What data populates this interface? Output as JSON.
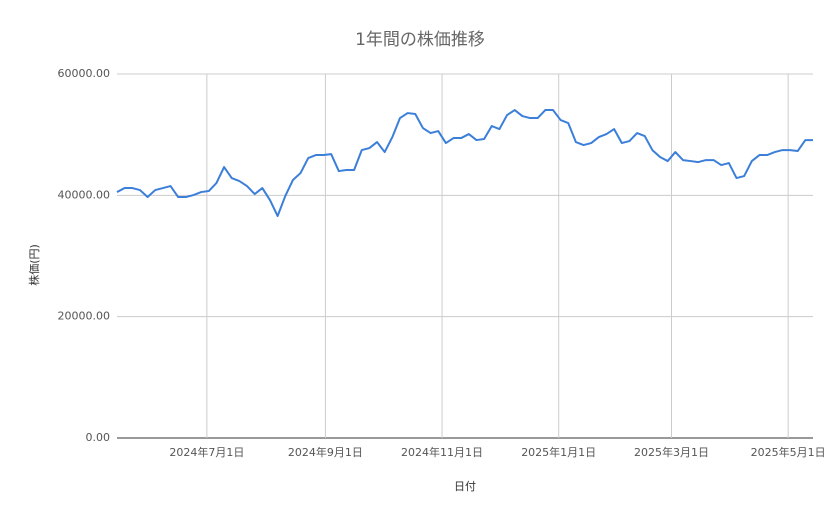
{
  "chart_data": {
    "type": "line",
    "title": "1年間の株価推移",
    "x_label": "日付",
    "y_label": "株価(円)",
    "x": [
      "2024-05-15",
      "2024-05-19",
      "2024-05-23",
      "2024-05-27",
      "2024-05-31",
      "2024-06-04",
      "2024-06-08",
      "2024-06-12",
      "2024-06-16",
      "2024-06-20",
      "2024-06-24",
      "2024-06-28",
      "2024-07-02",
      "2024-07-06",
      "2024-07-10",
      "2024-07-14",
      "2024-07-18",
      "2024-07-22",
      "2024-07-26",
      "2024-07-30",
      "2024-08-03",
      "2024-08-07",
      "2024-08-11",
      "2024-08-15",
      "2024-08-19",
      "2024-08-23",
      "2024-08-27",
      "2024-08-31",
      "2024-09-04",
      "2024-09-08",
      "2024-09-12",
      "2024-09-16",
      "2024-09-20",
      "2024-09-24",
      "2024-09-28",
      "2024-10-02",
      "2024-10-06",
      "2024-10-10",
      "2024-10-14",
      "2024-10-18",
      "2024-10-22",
      "2024-10-26",
      "2024-10-30",
      "2024-11-03",
      "2024-11-07",
      "2024-11-11",
      "2024-11-15",
      "2024-11-19",
      "2024-11-23",
      "2024-11-27",
      "2024-12-01",
      "2024-12-05",
      "2024-12-09",
      "2024-12-13",
      "2024-12-17",
      "2024-12-21",
      "2024-12-25",
      "2024-12-29",
      "2025-01-02",
      "2025-01-06",
      "2025-01-10",
      "2025-01-14",
      "2025-01-18",
      "2025-01-22",
      "2025-01-26",
      "2025-01-30",
      "2025-02-03",
      "2025-02-07",
      "2025-02-11",
      "2025-02-15",
      "2025-02-19",
      "2025-02-23",
      "2025-02-27",
      "2025-03-03",
      "2025-03-07",
      "2025-03-11",
      "2025-03-15",
      "2025-03-19",
      "2025-03-23",
      "2025-03-27",
      "2025-03-31",
      "2025-04-04",
      "2025-04-08",
      "2025-04-12",
      "2025-04-16",
      "2025-04-20",
      "2025-04-24",
      "2025-04-28",
      "2025-05-02",
      "2025-05-06",
      "2025-05-10",
      "2025-05-14"
    ],
    "series": [
      {
        "name": "株価",
        "color": "#3c7fd9",
        "values": [
          40540,
          41200,
          41200,
          40870,
          39720,
          40870,
          41200,
          41530,
          39720,
          39720,
          40050,
          40540,
          40710,
          42020,
          44660,
          42850,
          42350,
          41530,
          40210,
          41200,
          39220,
          36590,
          39880,
          42520,
          43670,
          46140,
          46640,
          46640,
          46800,
          44000,
          44170,
          44170,
          47460,
          47790,
          48780,
          47130,
          49600,
          52740,
          53560,
          53400,
          51090,
          50260,
          50590,
          48620,
          49440,
          49440,
          50100,
          49110,
          49280,
          51420,
          50920,
          53230,
          54060,
          53070,
          52740,
          52740,
          54060,
          54060,
          52410,
          51910,
          48780,
          48290,
          48620,
          49600,
          50100,
          50920,
          48620,
          48950,
          50260,
          49770,
          47460,
          46310,
          45650,
          47130,
          45810,
          45650,
          45480,
          45810,
          45810,
          44990,
          45320,
          42850,
          43180,
          45650,
          46640,
          46640,
          47130,
          47460,
          47460,
          47300,
          49110,
          49110
        ]
      }
    ],
    "xlim": [
      "2024-05-15",
      "2025-05-14"
    ],
    "xticks": [
      {
        "value": "2024-07-01",
        "label": "2024年7月1日"
      },
      {
        "value": "2024-09-01",
        "label": "2024年9月1日"
      },
      {
        "value": "2024-11-01",
        "label": "2024年11月1日"
      },
      {
        "value": "2025-01-01",
        "label": "2025年1月1日"
      },
      {
        "value": "2025-03-01",
        "label": "2025年3月1日"
      },
      {
        "value": "2025-05-01",
        "label": "2025年5月1日"
      }
    ],
    "ylim": [
      0,
      60000
    ],
    "yticks": [
      {
        "value": 0,
        "label": "0.00"
      },
      {
        "value": 20000,
        "label": "20000.00"
      },
      {
        "value": 40000,
        "label": "40000.00"
      },
      {
        "value": 60000,
        "label": "60000.00"
      }
    ],
    "grid": true
  }
}
